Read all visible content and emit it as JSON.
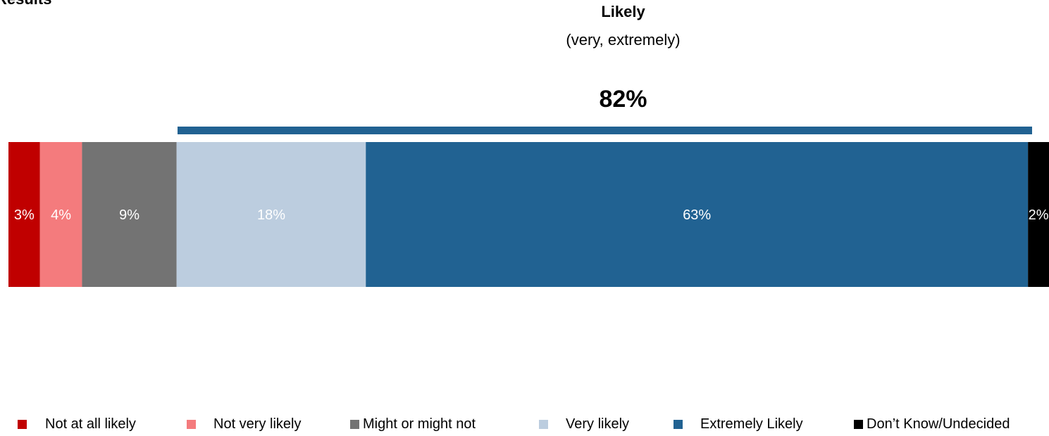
{
  "header": {
    "results_label": "Results",
    "likely_title": "Likely",
    "likely_subtitle": "(very, extremely)",
    "likely_total": "82%"
  },
  "chart_data": {
    "type": "bar",
    "orientation": "horizontal-stacked",
    "grid": false,
    "legend_placement": "bottom",
    "series": [
      {
        "name": "Not at all likely",
        "value": 3,
        "label": "3%",
        "color": "#c00000"
      },
      {
        "name": "Not very likely",
        "value": 4,
        "label": "4%",
        "color": "#f47b7d"
      },
      {
        "name": "Might or might not",
        "value": 9,
        "label": "9%",
        "color": "#737373"
      },
      {
        "name": "Very likely",
        "value": 18,
        "label": "18%",
        "color": "#bccddf"
      },
      {
        "name": "Extremely Likely",
        "value": 63,
        "label": "63%",
        "color": "#216292"
      },
      {
        "name": "Don’t Know/Undecided",
        "value": 2,
        "label": "2%",
        "color": "#000000"
      }
    ]
  },
  "legend": {
    "items": [
      {
        "label": "Not at all likely",
        "color": "#c00000"
      },
      {
        "label": "Not very likely",
        "color": "#f47b7d"
      },
      {
        "label": "Might or might not",
        "color": "#737373"
      },
      {
        "label": "Very likely",
        "color": "#bccddf"
      },
      {
        "label": "Extremely Likely",
        "color": "#216292"
      },
      {
        "label": "Don’t Know/Undecided",
        "color": "#000000"
      }
    ]
  }
}
